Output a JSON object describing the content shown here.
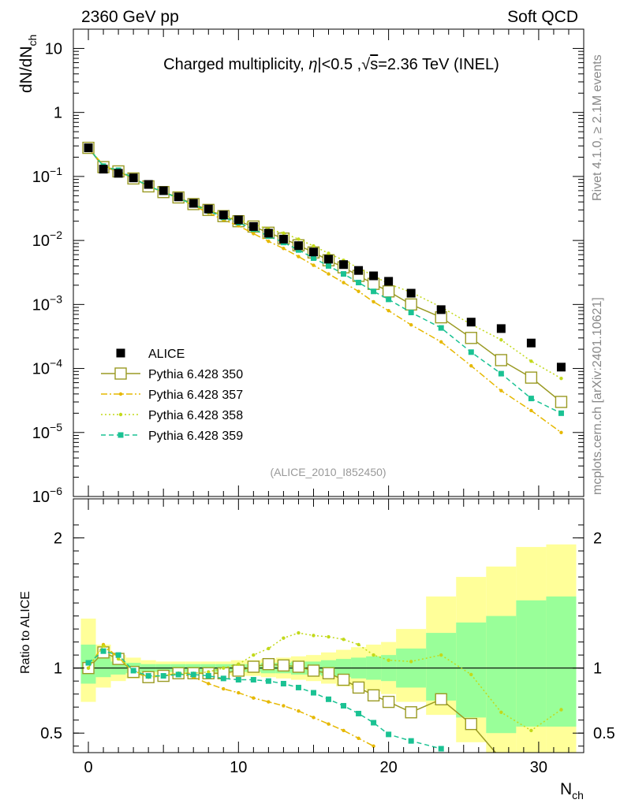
{
  "header": {
    "left": "2360 GeV pp",
    "right": "Soft QCD"
  },
  "side_labels": {
    "rivet": "Rivet 4.1.0, ≥ 2.1M events",
    "mcplots": "mcplots.cern.ch [arXiv:2401.10621]"
  },
  "colors": {
    "alice": "#000000",
    "p350": "#9a9a23",
    "p357": "#e6b800",
    "p358": "#c2d91a",
    "p359": "#1ac293",
    "band_yellow": "#ffff99",
    "band_green": "#99ff99"
  },
  "chart_data": [
    {
      "type": "scatter",
      "panel": "main",
      "title": "Charged multiplicity, |η|<0.5 ,√s=2.36 TeV (INEL)",
      "title_parts": {
        "pre": "Charged multiplicity, ",
        "eta": "η",
        "mid": "|<0.5 ,",
        "sqrt": "√",
        "s": "s",
        "post": "=2.36 TeV (INEL)"
      },
      "ylabel": "dN/dN",
      "ylabel_sub": "ch",
      "yscale": "log",
      "ylim": [
        1e-06,
        20
      ],
      "xlim": [
        -1,
        33
      ],
      "yticks": [
        {
          "v": 10,
          "label": "10"
        },
        {
          "v": 1,
          "label": "1"
        },
        {
          "v": 0.1,
          "base": "10",
          "exp": "−1"
        },
        {
          "v": 0.01,
          "base": "10",
          "exp": "−2"
        },
        {
          "v": 0.001,
          "base": "10",
          "exp": "−3"
        },
        {
          "v": 0.0001,
          "base": "10",
          "exp": "−4"
        },
        {
          "v": 1e-05,
          "base": "10",
          "exp": "−5"
        },
        {
          "v": 1e-06,
          "base": "10",
          "exp": "−6"
        }
      ],
      "watermark": "(ALICE_2010_I852450)",
      "legend_position": "lower-left",
      "series": [
        {
          "name": "ALICE",
          "style": "data",
          "color": "#000000",
          "x": [
            0,
            1,
            2,
            3,
            4,
            5,
            6,
            7,
            8,
            9,
            10,
            11,
            12,
            13,
            14,
            15,
            16,
            17,
            18,
            19,
            20,
            21.5,
            23.5,
            25.5,
            27.5,
            29.5,
            31.5
          ],
          "values": [
            0.28,
            0.13,
            0.112,
            0.095,
            0.075,
            0.06,
            0.048,
            0.038,
            0.031,
            0.025,
            0.021,
            0.0165,
            0.013,
            0.0105,
            0.0083,
            0.0066,
            0.0051,
            0.0042,
            0.0034,
            0.0028,
            0.0023,
            0.0015,
            0.00083,
            0.00053,
            0.00042,
            0.00025,
            0.000105
          ]
        },
        {
          "name": "Pythia 6.428 350",
          "style": "solid",
          "marker": "open-square",
          "color": "#9a9a23",
          "x": [
            0,
            1,
            2,
            3,
            4,
            5,
            6,
            7,
            8,
            9,
            10,
            11,
            12,
            13,
            14,
            15,
            16,
            17,
            18,
            19,
            20,
            21.5,
            23.5,
            25.5,
            27.5,
            29.5,
            31.5
          ],
          "values": [
            0.28,
            0.14,
            0.12,
            0.093,
            0.07,
            0.057,
            0.047,
            0.037,
            0.03,
            0.024,
            0.02,
            0.0165,
            0.0132,
            0.0107,
            0.0084,
            0.0065,
            0.0049,
            0.0038,
            0.0028,
            0.0021,
            0.0016,
            0.001,
            0.00063,
            0.0003,
            0.000135,
            7.2e-05,
            3e-05
          ]
        },
        {
          "name": "Pythia 6.428 357",
          "style": "dashdot",
          "marker": "small-dot",
          "color": "#e6b800",
          "x": [
            0,
            1,
            2,
            3,
            4,
            5,
            6,
            7,
            8,
            9,
            10,
            11,
            12,
            13,
            14,
            15,
            16,
            17,
            18,
            19,
            20,
            21.5,
            23.5,
            25.5,
            27.5,
            29.5,
            31.5
          ],
          "values": [
            0.28,
            0.15,
            0.118,
            0.093,
            0.071,
            0.056,
            0.046,
            0.035,
            0.027,
            0.021,
            0.017,
            0.0128,
            0.0097,
            0.0075,
            0.0056,
            0.0041,
            0.003,
            0.0022,
            0.0016,
            0.0011,
            0.0008,
            0.00048,
            0.00026,
            0.00011,
            4.5e-05,
            2.2e-05,
            1e-05
          ]
        },
        {
          "name": "Pythia 6.428 358",
          "style": "dotted",
          "marker": "small-dot",
          "color": "#c2d91a",
          "x": [
            0,
            1,
            2,
            3,
            4,
            5,
            6,
            7,
            8,
            9,
            10,
            11,
            12,
            13,
            14,
            15,
            16,
            17,
            18,
            19,
            20,
            21.5,
            23.5,
            25.5,
            27.5,
            29.5,
            31.5
          ],
          "values": [
            0.28,
            0.15,
            0.12,
            0.094,
            0.07,
            0.057,
            0.046,
            0.036,
            0.03,
            0.025,
            0.021,
            0.018,
            0.015,
            0.013,
            0.0105,
            0.0082,
            0.0063,
            0.0049,
            0.0037,
            0.0028,
            0.0021,
            0.00155,
            0.00091,
            0.00049,
            0.00028,
            0.00013,
            7e-05
          ]
        },
        {
          "name": "Pythia 6.428 359",
          "style": "dashed",
          "marker": "filled-square",
          "color": "#1ac293",
          "x": [
            0,
            1,
            2,
            3,
            4,
            5,
            6,
            7,
            8,
            9,
            10,
            11,
            12,
            13,
            14,
            15,
            16,
            17,
            18,
            19,
            20,
            21.5,
            23.5,
            25.5,
            27.5,
            29.5,
            31.5
          ],
          "values": [
            0.28,
            0.145,
            0.125,
            0.094,
            0.071,
            0.057,
            0.046,
            0.036,
            0.029,
            0.023,
            0.019,
            0.015,
            0.0117,
            0.0093,
            0.0071,
            0.0053,
            0.004,
            0.003,
            0.0022,
            0.0016,
            0.0012,
            0.00075,
            0.00043,
            0.00018,
            8.3e-05,
            3.4e-05,
            2e-05
          ]
        }
      ]
    },
    {
      "type": "line",
      "panel": "ratio",
      "ylabel": "Ratio to ALICE",
      "xlabel": "N",
      "xlabel_sub": "ch",
      "ylim": [
        0.35,
        2.3
      ],
      "xlim": [
        -1,
        33
      ],
      "yticks": [
        0.5,
        1,
        2
      ],
      "yticks_labels": [
        "0.5",
        "1",
        "2"
      ],
      "xticks": [
        0,
        10,
        20,
        30
      ],
      "xticks_labels": [
        "0",
        "10",
        "20",
        "30"
      ],
      "bands": {
        "edges": [
          -0.5,
          0.5,
          1.5,
          2.5,
          3.5,
          4.5,
          5.5,
          6.5,
          7.5,
          8.5,
          9.5,
          10.5,
          11.5,
          12.5,
          13.5,
          14.5,
          15.5,
          16.5,
          17.5,
          18.5,
          19.5,
          20.5,
          22.5,
          24.5,
          26.5,
          28.5,
          30.5,
          32.5
        ],
        "yellow_up": [
          1.38,
          1.18,
          1.1,
          1.08,
          1.06,
          1.05,
          1.05,
          1.05,
          1.05,
          1.05,
          1.06,
          1.06,
          1.07,
          1.08,
          1.09,
          1.1,
          1.12,
          1.14,
          1.16,
          1.18,
          1.2,
          1.3,
          1.55,
          1.7,
          1.78,
          1.93,
          1.95
        ],
        "yellow_dn": [
          0.74,
          0.85,
          0.9,
          0.92,
          0.94,
          0.95,
          0.95,
          0.95,
          0.95,
          0.95,
          0.94,
          0.94,
          0.93,
          0.92,
          0.91,
          0.9,
          0.88,
          0.86,
          0.84,
          0.82,
          0.8,
          0.74,
          0.64,
          0.43,
          0.3,
          0.1,
          0.1
        ],
        "green_up": [
          1.18,
          1.09,
          1.05,
          1.04,
          1.03,
          1.03,
          1.03,
          1.03,
          1.03,
          1.03,
          1.03,
          1.03,
          1.04,
          1.04,
          1.05,
          1.05,
          1.06,
          1.07,
          1.08,
          1.09,
          1.1,
          1.15,
          1.27,
          1.35,
          1.4,
          1.52,
          1.55
        ],
        "green_dn": [
          0.88,
          0.93,
          0.95,
          0.96,
          0.97,
          0.97,
          0.97,
          0.97,
          0.97,
          0.97,
          0.97,
          0.97,
          0.96,
          0.96,
          0.95,
          0.95,
          0.94,
          0.93,
          0.92,
          0.91,
          0.9,
          0.85,
          0.75,
          0.62,
          0.5,
          0.55,
          0.55
        ]
      },
      "series": [
        {
          "name": "Pythia 6.428 350",
          "style": "solid",
          "marker": "open-square",
          "color": "#9a9a23",
          "x": [
            0,
            1,
            2,
            3,
            4,
            5,
            6,
            7,
            8,
            9,
            10,
            11,
            12,
            13,
            14,
            15,
            16,
            17,
            18,
            19,
            20,
            21.5,
            23.5,
            25.5,
            27.5
          ],
          "values": [
            1.0,
            1.12,
            1.07,
            0.97,
            0.93,
            0.94,
            0.96,
            0.96,
            0.96,
            0.96,
            0.98,
            1.01,
            1.03,
            1.02,
            1.01,
            0.98,
            0.96,
            0.91,
            0.85,
            0.79,
            0.74,
            0.66,
            0.76,
            0.57,
            0.3
          ]
        },
        {
          "name": "Pythia 6.428 357",
          "style": "dashdot",
          "marker": "small-dot",
          "color": "#e6b800",
          "x": [
            0,
            1,
            2,
            3,
            4,
            5,
            6,
            7,
            8,
            9,
            10,
            11,
            12,
            13,
            14,
            15,
            16,
            17,
            18,
            19
          ],
          "values": [
            1.0,
            1.18,
            1.08,
            0.98,
            0.93,
            0.94,
            0.96,
            0.93,
            0.88,
            0.84,
            0.81,
            0.77,
            0.74,
            0.71,
            0.67,
            0.62,
            0.57,
            0.52,
            0.46,
            0.4
          ]
        },
        {
          "name": "Pythia 6.428 358",
          "style": "dotted",
          "marker": "small-dot",
          "color": "#c2d91a",
          "x": [
            0,
            1,
            2,
            3,
            4,
            5,
            6,
            7,
            8,
            9,
            10,
            11,
            12,
            13,
            14,
            15,
            16,
            17,
            18,
            19,
            20,
            21.5,
            23.5,
            25.5,
            27.5,
            29.5,
            31.5
          ],
          "values": [
            1.0,
            1.17,
            1.07,
            0.98,
            0.93,
            0.94,
            0.96,
            0.96,
            0.97,
            1.0,
            1.03,
            1.1,
            1.15,
            1.23,
            1.27,
            1.25,
            1.24,
            1.22,
            1.18,
            1.1,
            1.06,
            1.05,
            1.1,
            0.95,
            0.66,
            0.52,
            0.68
          ]
        },
        {
          "name": "Pythia 6.428 359",
          "style": "dashed",
          "marker": "filled-square",
          "color": "#1ac293",
          "x": [
            0,
            1,
            2,
            3,
            4,
            5,
            6,
            7,
            8,
            9,
            10,
            11,
            12,
            13,
            14,
            15,
            16,
            17,
            18,
            19,
            20,
            21.5,
            23.5
          ],
          "values": [
            1.04,
            1.13,
            1.1,
            0.98,
            0.94,
            0.94,
            0.95,
            0.95,
            0.94,
            0.92,
            0.91,
            0.91,
            0.9,
            0.88,
            0.85,
            0.81,
            0.76,
            0.71,
            0.65,
            0.58,
            0.49,
            0.44,
            0.38
          ]
        }
      ]
    }
  ]
}
